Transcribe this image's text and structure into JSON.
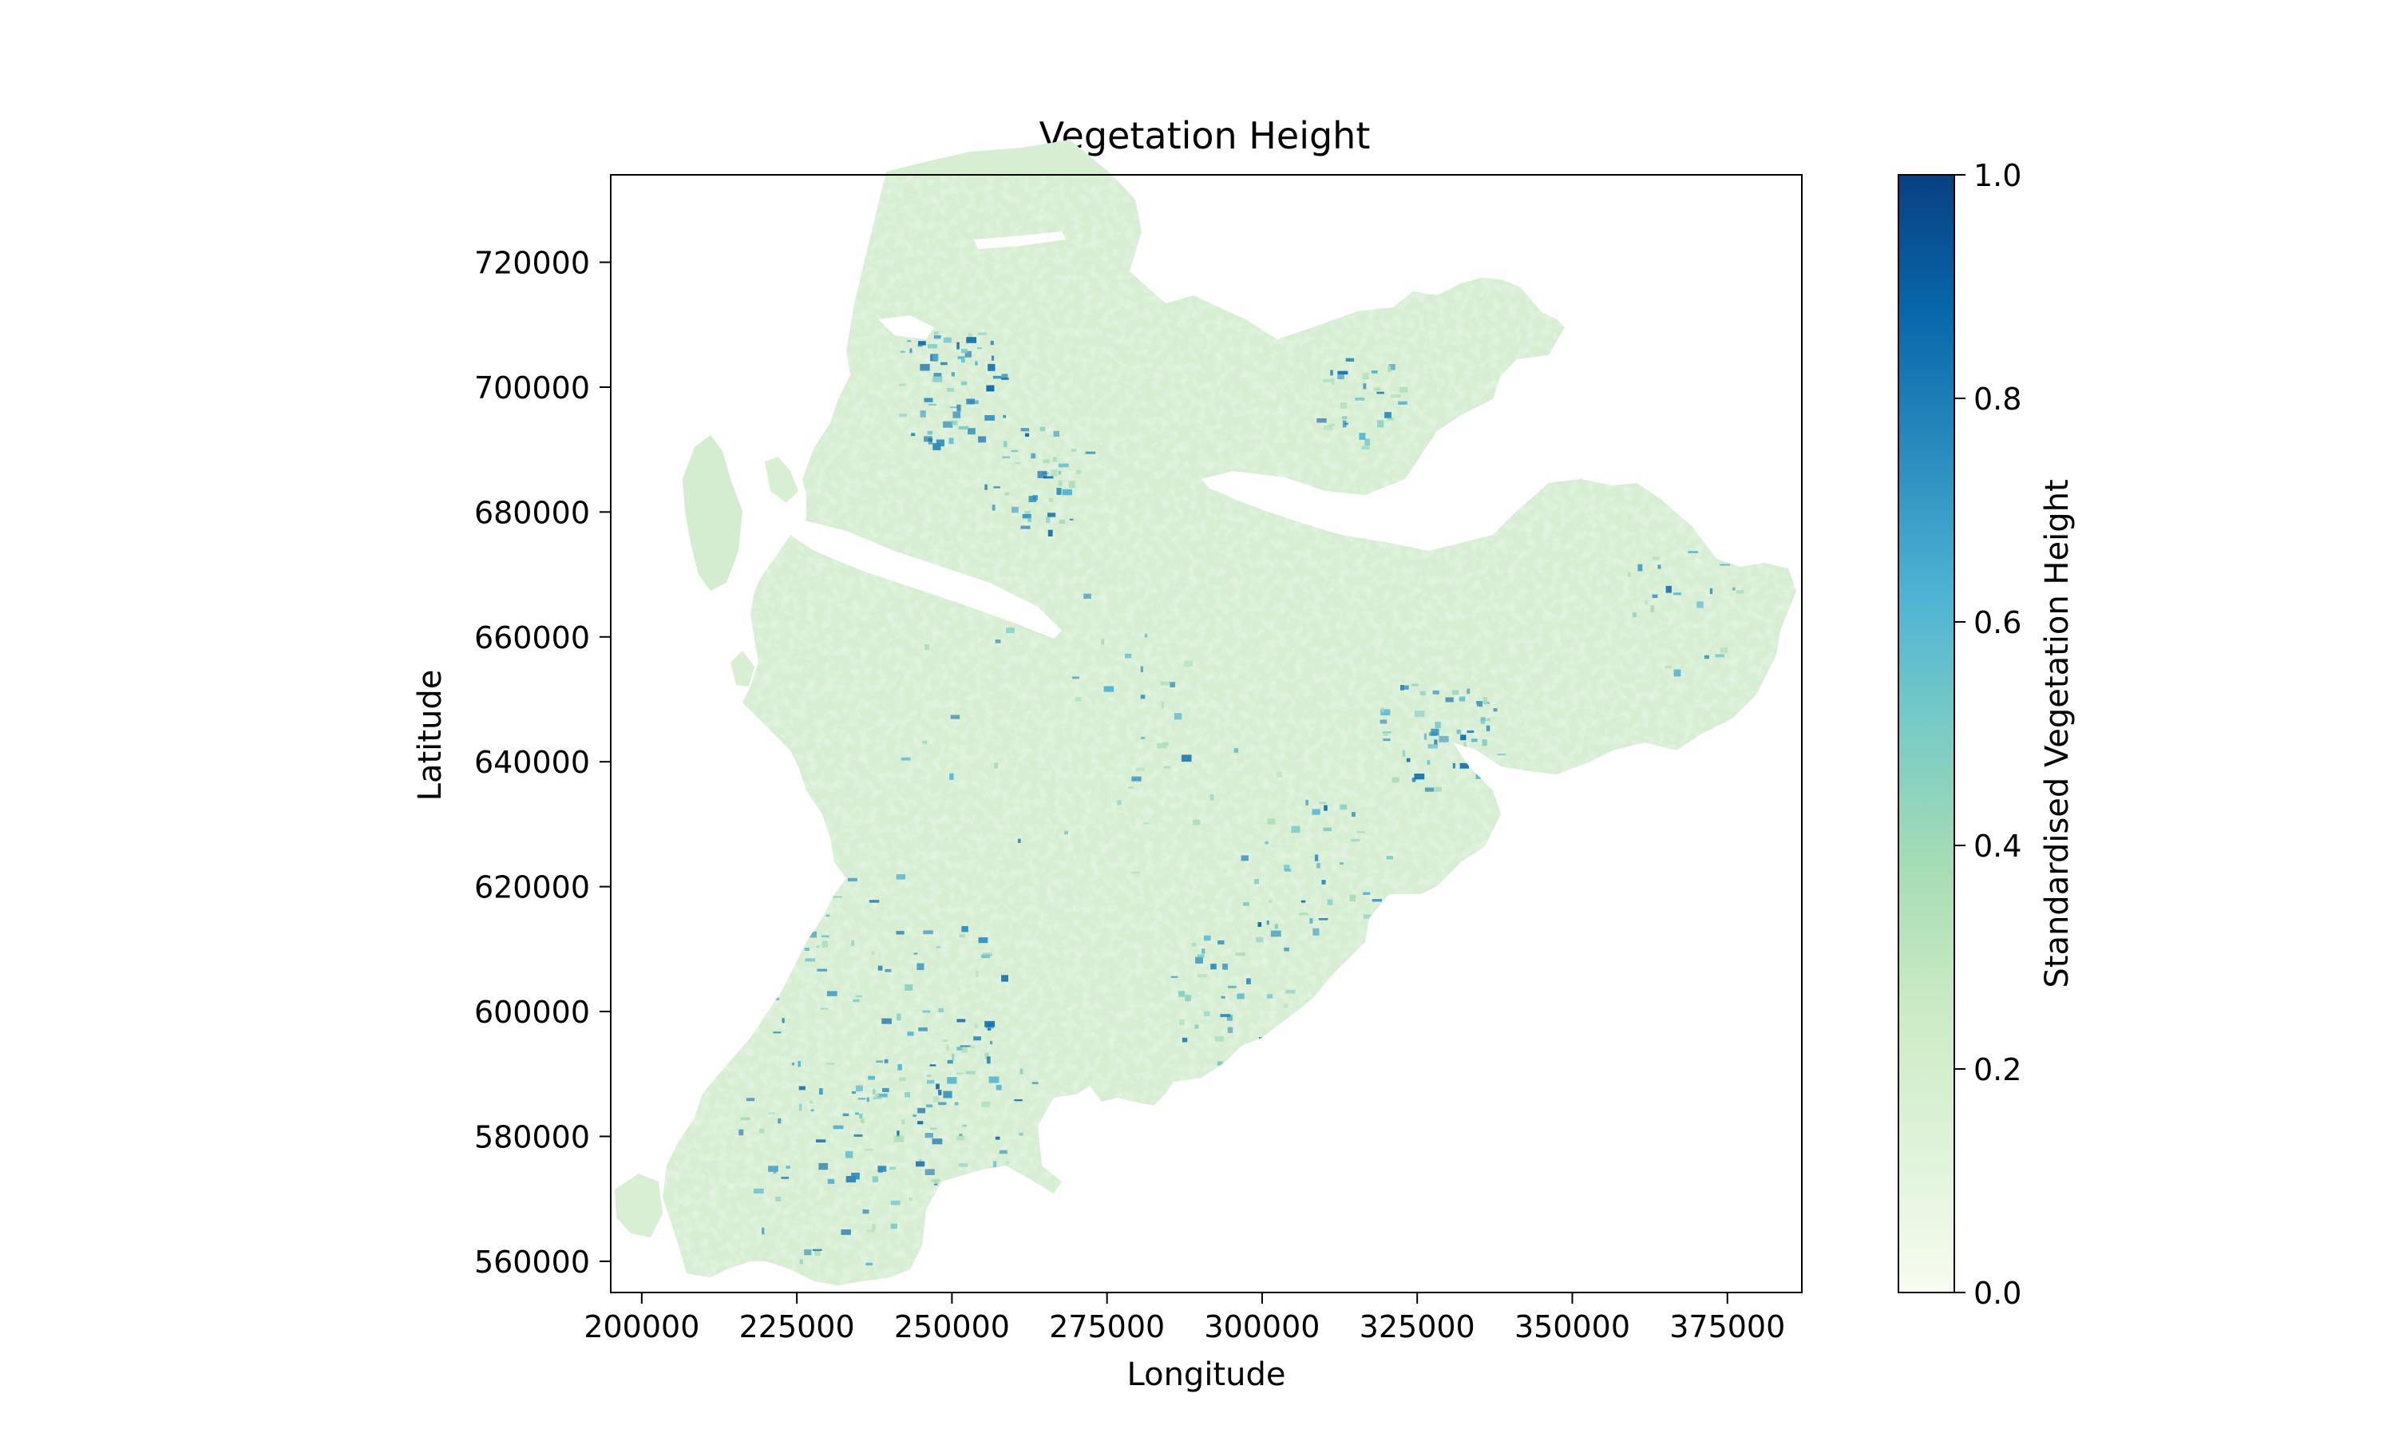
{
  "chart_data": {
    "type": "heatmap",
    "title": "Vegetation Height",
    "xlabel": "Longitude",
    "ylabel": "Latitude",
    "xlim": [
      195000,
      387000
    ],
    "ylim": [
      555000,
      734000
    ],
    "x_ticks": [
      200000,
      225000,
      250000,
      275000,
      300000,
      325000,
      350000,
      375000
    ],
    "y_ticks": [
      560000,
      580000,
      600000,
      620000,
      640000,
      660000,
      680000,
      700000,
      720000
    ],
    "x_tick_labels": [
      "200000",
      "225000",
      "250000",
      "275000",
      "300000",
      "325000",
      "350000",
      "375000"
    ],
    "y_tick_labels": [
      "560000",
      "580000",
      "600000",
      "620000",
      "640000",
      "660000",
      "680000",
      "700000",
      "720000"
    ],
    "colorbar": {
      "label": "Standardised Vegetation Height",
      "range": [
        0.0,
        1.0
      ],
      "ticks": [
        0.0,
        0.2,
        0.4,
        0.6,
        0.8,
        1.0
      ],
      "tick_labels": [
        "0.0",
        "0.2",
        "0.4",
        "0.6",
        "0.8",
        "1.0"
      ],
      "colormap": "GnBu",
      "stops": [
        "#f7fcf0",
        "#e0f3db",
        "#ccebc5",
        "#a8ddb5",
        "#7bccc4",
        "#4eb3d3",
        "#2b8cbe",
        "#0868ac",
        "#084081"
      ]
    },
    "grid": false
  }
}
